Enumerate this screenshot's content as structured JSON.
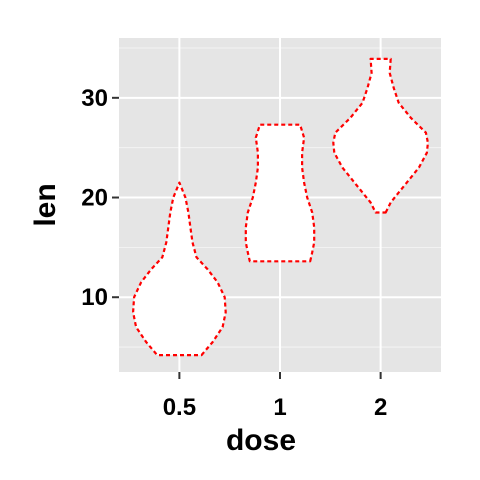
{
  "chart_data": {
    "type": "violin",
    "title": "",
    "xlabel": "dose",
    "ylabel": "len",
    "categories": [
      "0.5",
      "1",
      "2"
    ],
    "ylim": [
      2.5,
      36
    ],
    "yticks": [
      10,
      20,
      30
    ],
    "grid": true,
    "legend": "none",
    "colors": {
      "panel": "#e5e5e5",
      "grid": "#ffffff",
      "outline": "#ff0000",
      "fill": "#ffffff",
      "text": "#000000",
      "tick": "#333333"
    },
    "violins": [
      {
        "category": "0.5",
        "min": 4.2,
        "max": 21.5,
        "profile": [
          [
            4.2,
            0.22
          ],
          [
            5.5,
            0.33
          ],
          [
            7,
            0.43
          ],
          [
            8.5,
            0.46
          ],
          [
            10,
            0.45
          ],
          [
            11.5,
            0.38
          ],
          [
            12.8,
            0.28
          ],
          [
            14,
            0.17
          ],
          [
            15.5,
            0.13
          ],
          [
            17,
            0.11
          ],
          [
            18.5,
            0.09
          ],
          [
            20,
            0.06
          ],
          [
            21.5,
            0.0
          ]
        ]
      },
      {
        "category": "1",
        "min": 13.6,
        "max": 27.3,
        "profile": [
          [
            13.6,
            0.3
          ],
          [
            14.5,
            0.32
          ],
          [
            15.5,
            0.34
          ],
          [
            17,
            0.34
          ],
          [
            18.5,
            0.32
          ],
          [
            20,
            0.27
          ],
          [
            21.5,
            0.24
          ],
          [
            23,
            0.22
          ],
          [
            24.5,
            0.22
          ],
          [
            26,
            0.24
          ],
          [
            27.3,
            0.2
          ]
        ]
      },
      {
        "category": "2",
        "min": 18.5,
        "max": 33.9,
        "profile": [
          [
            18.5,
            0.05
          ],
          [
            19.5,
            0.1
          ],
          [
            20.5,
            0.18
          ],
          [
            21.5,
            0.26
          ],
          [
            23,
            0.38
          ],
          [
            24.5,
            0.46
          ],
          [
            25.5,
            0.47
          ],
          [
            26.5,
            0.45
          ],
          [
            28,
            0.3
          ],
          [
            29.5,
            0.18
          ],
          [
            31,
            0.13
          ],
          [
            32.5,
            0.09
          ],
          [
            33.9,
            0.1
          ]
        ]
      }
    ]
  }
}
